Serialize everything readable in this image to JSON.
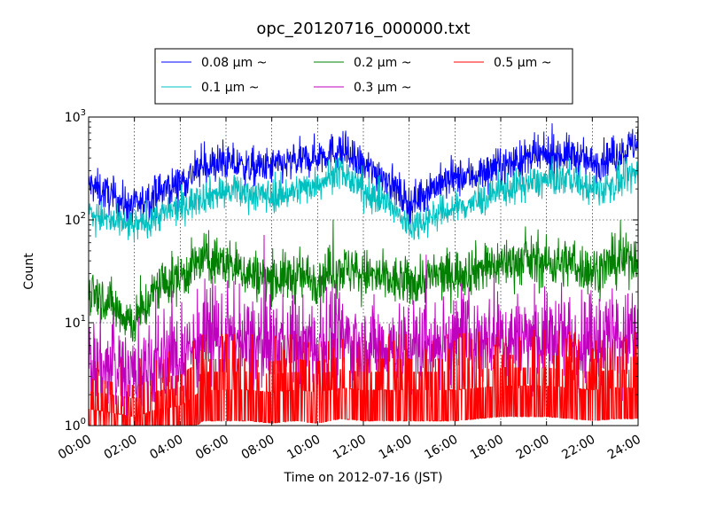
{
  "chart_data": {
    "type": "line",
    "title": "opc_20120716_000000.txt",
    "xlabel": "Time on 2012-07-16 (JST)",
    "ylabel": "Count",
    "yscale": "log",
    "ylim": [
      1,
      1000
    ],
    "xlim": [
      "00:00",
      "24:00"
    ],
    "grid": true,
    "legend_position": "top-center, outside plot",
    "x_ticks": [
      "00:00",
      "02:00",
      "04:00",
      "06:00",
      "08:00",
      "10:00",
      "12:00",
      "14:00",
      "16:00",
      "18:00",
      "20:00",
      "22:00",
      "24:00"
    ],
    "y_ticks": [
      {
        "value": 1,
        "label": "10",
        "exp": "0"
      },
      {
        "value": 10,
        "label": "10",
        "exp": "1"
      },
      {
        "value": 100,
        "label": "10",
        "exp": "2"
      },
      {
        "value": 1000,
        "label": "10",
        "exp": "3"
      }
    ],
    "x_hours": [
      0,
      1,
      2,
      3,
      4,
      5,
      6,
      7,
      8,
      9,
      10,
      11,
      12,
      13,
      14,
      15,
      16,
      17,
      18,
      19,
      20,
      21,
      22,
      23,
      24
    ],
    "series": [
      {
        "name": "0.08 μm ~",
        "color": "#0000ff",
        "noise": 0.09,
        "spikes": 0.03,
        "values": [
          220,
          170,
          130,
          180,
          230,
          330,
          360,
          320,
          330,
          360,
          420,
          480,
          330,
          260,
          140,
          210,
          250,
          280,
          330,
          390,
          420,
          440,
          350,
          420,
          570
        ]
      },
      {
        "name": "0.1 μm ~",
        "color": "#00bfbf",
        "noise": 0.08,
        "spikes": 0.02,
        "values": [
          120,
          95,
          85,
          110,
          130,
          170,
          190,
          180,
          170,
          190,
          230,
          300,
          190,
          150,
          85,
          110,
          130,
          150,
          190,
          220,
          240,
          260,
          190,
          220,
          290
        ]
      },
      {
        "name": "0.2 μm ~",
        "color": "#008000",
        "noise": 0.12,
        "spikes": 0.04,
        "values": [
          22,
          15,
          10,
          22,
          28,
          42,
          38,
          30,
          27,
          28,
          27,
          34,
          30,
          26,
          24,
          28,
          30,
          34,
          38,
          40,
          38,
          38,
          32,
          38,
          45
        ]
      },
      {
        "name": "0.3 μm ~",
        "color": "#bf00bf",
        "noise": 0.22,
        "spikes": 0.08,
        "values": [
          4,
          3.5,
          3,
          4,
          4.5,
          7,
          7,
          6,
          6,
          6,
          6,
          7,
          6,
          6,
          6,
          6,
          6.5,
          7,
          7,
          7,
          7,
          7,
          6.5,
          7,
          7
        ]
      },
      {
        "name": "0.5 μm ~",
        "color": "#ff0000",
        "noise": 0.3,
        "spikes": 0.12,
        "values": [
          1.3,
          1.2,
          1.1,
          1.3,
          1.4,
          2,
          2,
          2,
          1.9,
          2,
          1.9,
          2.1,
          2,
          2,
          2,
          2,
          2,
          2.1,
          2.2,
          2.2,
          2.2,
          2.1,
          2,
          2.1,
          2.1
        ]
      }
    ]
  }
}
